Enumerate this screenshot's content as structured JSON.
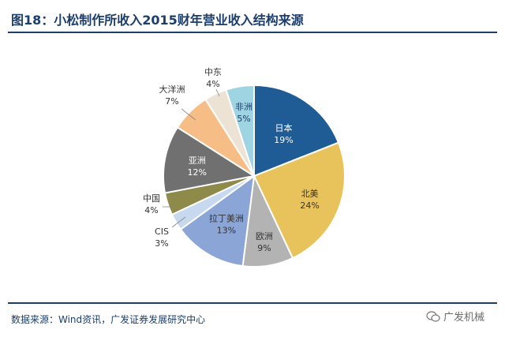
{
  "title": "图18：小松制作所收入2015财年营业收入结构来源",
  "source": "数据来源：Wind资讯，广发证券发展研究中心",
  "watermark": "广发机械",
  "chart_data": {
    "type": "pie",
    "title": "图18：小松制作所收入2015财年营业收入结构来源",
    "slices": [
      {
        "label": "日本",
        "value": 19,
        "pct": "19%",
        "color": "#1f5b95",
        "text_color": "#ffffff"
      },
      {
        "label": "北美",
        "value": 24,
        "pct": "24%",
        "color": "#e8c35c",
        "text_color": "#333333"
      },
      {
        "label": "欧洲",
        "value": 9,
        "pct": "9%",
        "color": "#b3b3b3",
        "text_color": "#333333"
      },
      {
        "label": "拉丁美洲",
        "value": 13,
        "pct": "13%",
        "color": "#8aa5d6",
        "text_color": "#333333"
      },
      {
        "label": "CIS",
        "value": 3,
        "pct": "3%",
        "color": "#c7d9ef",
        "text_color": "#333333"
      },
      {
        "label": "中国",
        "value": 4,
        "pct": "4%",
        "color": "#8e8a4a",
        "text_color": "#333333"
      },
      {
        "label": "亚洲",
        "value": 12,
        "pct": "12%",
        "color": "#707070",
        "text_color": "#ffffff"
      },
      {
        "label": "大洋洲",
        "value": 7,
        "pct": "7%",
        "color": "#f7bd86",
        "text_color": "#333333"
      },
      {
        "label": "中东",
        "value": 4,
        "pct": "4%",
        "color": "#ede3d5",
        "text_color": "#333333"
      },
      {
        "label": "非洲",
        "value": 5,
        "pct": "5%",
        "color": "#9fd4e2",
        "text_color": "#1b3e6b"
      }
    ]
  }
}
